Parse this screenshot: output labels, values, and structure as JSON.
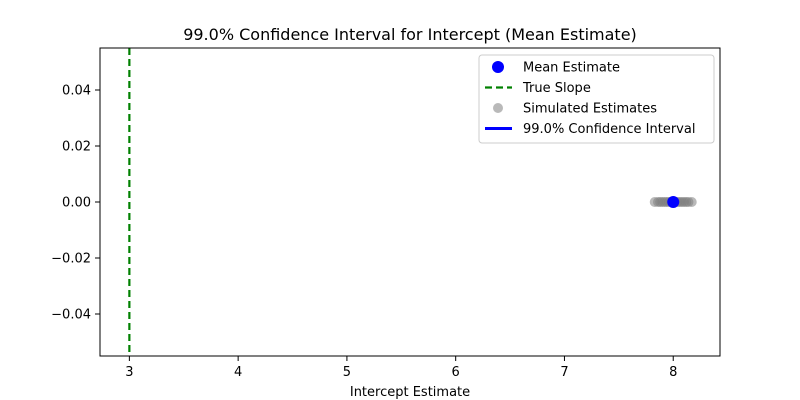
{
  "chart_data": {
    "type": "scatter",
    "title": "99.0% Confidence Interval for Intercept (Mean Estimate)",
    "xlabel": "Intercept Estimate",
    "ylabel": "",
    "xlim": [
      2.73,
      8.43
    ],
    "ylim": [
      -0.055,
      0.055
    ],
    "xticks": [
      3,
      4,
      5,
      6,
      7,
      8
    ],
    "yticks": [
      -0.04,
      -0.02,
      0.0,
      0.02,
      0.04
    ],
    "ytick_labels": [
      "−0.04",
      "−0.02",
      "0.00",
      "0.02",
      "0.04"
    ],
    "grid": false,
    "legend_position": "top-right",
    "legend": [
      {
        "label": "Mean Estimate",
        "kind": "marker",
        "color": "#0000ff"
      },
      {
        "label": "True Slope",
        "kind": "dashed-line",
        "color": "#008000"
      },
      {
        "label": "Simulated Estimates",
        "kind": "marker",
        "color": "#808080"
      },
      {
        "label": "99.0% Confidence Interval",
        "kind": "line",
        "color": "#0000ff"
      }
    ],
    "true_slope": 3.0,
    "mean_estimate": {
      "x": 8.0,
      "y": 0.0
    },
    "confidence_interval": [
      7.99,
      8.01
    ],
    "simulated_estimates": {
      "y": 0.0,
      "x": [
        7.83,
        7.86,
        7.88,
        7.9,
        7.92,
        7.94,
        7.96,
        7.98,
        8.0,
        8.02,
        8.04,
        8.06,
        8.08,
        8.1,
        8.12,
        8.14,
        8.17
      ]
    },
    "colors": {
      "mean": "#0000ff",
      "true_slope": "#008000",
      "simulated": "#808080",
      "ci": "#0000ff"
    }
  }
}
